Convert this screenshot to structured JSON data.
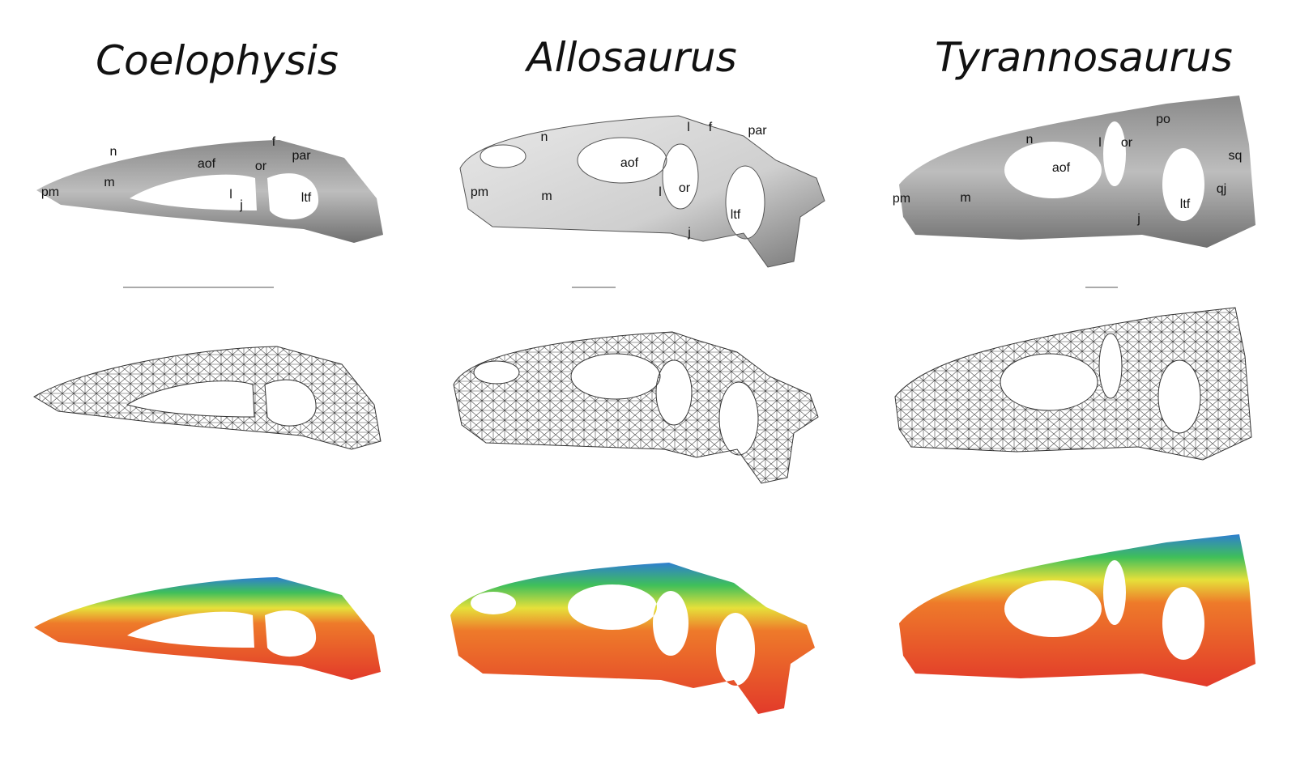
{
  "panels": [
    {
      "title": "Coelophysis",
      "labels": [
        "n",
        "f",
        "m",
        "aof",
        "or",
        "par",
        "pm",
        "l",
        "j",
        "ltf"
      ]
    },
    {
      "title": "Allosaurus",
      "labels": [
        "n",
        "l",
        "f",
        "par",
        "aof",
        "pm",
        "m",
        "l",
        "or",
        "ltf",
        "j"
      ]
    },
    {
      "title": "Tyrannosaurus",
      "labels": [
        "po",
        "n",
        "l",
        "or",
        "sq",
        "aof",
        "qj",
        "pm",
        "m",
        "ltf",
        "j"
      ]
    }
  ]
}
